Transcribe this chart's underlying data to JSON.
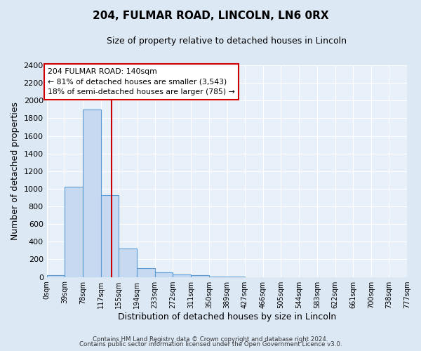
{
  "title": "204, FULMAR ROAD, LINCOLN, LN6 0RX",
  "subtitle": "Size of property relative to detached houses in Lincoln",
  "xlabel": "Distribution of detached houses by size in Lincoln",
  "ylabel": "Number of detached properties",
  "bar_edges": [
    0,
    39,
    78,
    117,
    155,
    194,
    233,
    272,
    311,
    350,
    389,
    427,
    466,
    505,
    544,
    583,
    622,
    661,
    700,
    738,
    777
  ],
  "bar_heights": [
    20,
    1025,
    1900,
    930,
    320,
    100,
    55,
    30,
    20,
    5,
    5,
    0,
    0,
    0,
    0,
    0,
    0,
    0,
    0,
    0
  ],
  "bar_color": "#c6d9f0",
  "bar_edgecolor": "#5b9bd5",
  "ylim": [
    0,
    2400
  ],
  "yticks": [
    0,
    200,
    400,
    600,
    800,
    1000,
    1200,
    1400,
    1600,
    1800,
    2000,
    2200,
    2400
  ],
  "property_size": 140,
  "vline_color": "#cc0000",
  "annotation_title": "204 FULMAR ROAD: 140sqm",
  "annotation_line1": "← 81% of detached houses are smaller (3,543)",
  "annotation_line2": "18% of semi-detached houses are larger (785) →",
  "annotation_box_color": "#ffffff",
  "annotation_border_color": "#cc0000",
  "tick_labels": [
    "0sqm",
    "39sqm",
    "78sqm",
    "117sqm",
    "155sqm",
    "194sqm",
    "233sqm",
    "272sqm",
    "311sqm",
    "350sqm",
    "389sqm",
    "427sqm",
    "466sqm",
    "505sqm",
    "544sqm",
    "583sqm",
    "622sqm",
    "661sqm",
    "700sqm",
    "738sqm",
    "777sqm"
  ],
  "background_color": "#dde8f5",
  "plot_bg_color": "#e8f0fa",
  "grid_color": "#ffffff",
  "footer_line1": "Contains HM Land Registry data © Crown copyright and database right 2024.",
  "footer_line2": "Contains public sector information licensed under the Open Government Licence v3.0."
}
